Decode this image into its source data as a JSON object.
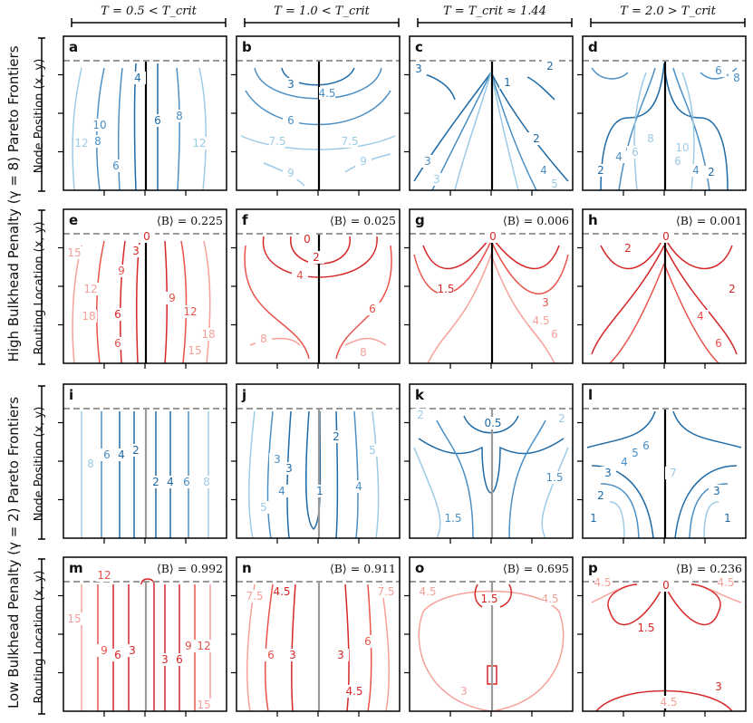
{
  "columns": [
    {
      "id": "col-1",
      "label": "T = 0.5 < T_crit"
    },
    {
      "id": "col-2",
      "label": "T = 1.0 < T_crit"
    },
    {
      "id": "col-3",
      "label": "T = T_crit ≈ 1.44"
    },
    {
      "id": "col-4",
      "label": "T = 2.0 > T_crit"
    }
  ],
  "group_labels": [
    {
      "id": "high",
      "label": "High Bulkhead Penalty (γ = 8) Pareto Frontiers"
    },
    {
      "id": "low",
      "label": "Low Bulkhead Penalty (γ = 2) Pareto Frontiers"
    }
  ],
  "row_labels": [
    {
      "label": "Node Position (x, y)"
    },
    {
      "label": "Routing Location (x, y)"
    },
    {
      "label": "Node Position (x, y)"
    },
    {
      "label": "Routing Location (x, y)"
    }
  ],
  "colors": {
    "blue_dark": "#1f6aa5",
    "blue_mid": "#4b8fc4",
    "blue_light": "#9ccbe6",
    "red_dark": "#d62728",
    "red_mid": "#e8534a",
    "red_light": "#f5a19a",
    "dashed_line": "#9a9a9a",
    "center_line_dark": "#000000",
    "center_line_gray": "#9a9a9a"
  },
  "chart_data": [
    {
      "type": "contour",
      "panel": "a",
      "row": "high-node",
      "T": 0.5,
      "gamma": 8,
      "bulkhead": "",
      "contour_levels": [
        "4",
        "6",
        "8",
        "10",
        "12",
        "6",
        "8",
        "12"
      ]
    },
    {
      "type": "contour",
      "panel": "b",
      "row": "high-node",
      "T": 1.0,
      "gamma": 8,
      "bulkhead": "",
      "contour_levels": [
        "3",
        "4.5",
        "6",
        "7.5",
        "7.5",
        "9",
        "9"
      ]
    },
    {
      "type": "contour",
      "panel": "c",
      "row": "high-node",
      "T": 1.44,
      "gamma": 8,
      "bulkhead": "",
      "contour_levels": [
        "1",
        "2",
        "3",
        "3",
        "2",
        "3",
        "4",
        "5"
      ]
    },
    {
      "type": "contour",
      "panel": "d",
      "row": "high-node",
      "T": 2.0,
      "gamma": 8,
      "bulkhead": "",
      "contour_levels": [
        "6",
        "8",
        "2",
        "4",
        "6",
        "8",
        "10",
        "2",
        "4",
        "6"
      ]
    },
    {
      "type": "contour",
      "panel": "e",
      "row": "high-routing",
      "T": 0.5,
      "gamma": 8,
      "bulkhead": "⟨B⟩ = 0.225",
      "contour_levels": [
        "0",
        "3",
        "6",
        "9",
        "12",
        "15",
        "18",
        "6",
        "9",
        "12",
        "18",
        "15"
      ]
    },
    {
      "type": "contour",
      "panel": "f",
      "row": "high-routing",
      "T": 1.0,
      "gamma": 8,
      "bulkhead": "⟨B⟩ = 0.025",
      "contour_levels": [
        "0",
        "2",
        "4",
        "6",
        "8",
        "8"
      ]
    },
    {
      "type": "contour",
      "panel": "g",
      "row": "high-routing",
      "T": 1.44,
      "gamma": 8,
      "bulkhead": "⟨B⟩ = 0.006",
      "contour_levels": [
        "0",
        "1.5",
        "3",
        "4.5",
        "6"
      ]
    },
    {
      "type": "contour",
      "panel": "h",
      "row": "high-routing",
      "T": 2.0,
      "gamma": 8,
      "bulkhead": "⟨B⟩ = 0.001",
      "contour_levels": [
        "0",
        "2",
        "2",
        "4",
        "6"
      ]
    },
    {
      "type": "contour",
      "panel": "i",
      "row": "low-node",
      "T": 0.5,
      "gamma": 2,
      "bulkhead": "",
      "contour_levels": [
        "8",
        "6",
        "4",
        "2",
        "2",
        "4",
        "6",
        "8"
      ]
    },
    {
      "type": "contour",
      "panel": "j",
      "row": "low-node",
      "T": 1.0,
      "gamma": 2,
      "bulkhead": "",
      "contour_levels": [
        "3",
        "2",
        "1",
        "3",
        "4",
        "5",
        "4",
        "5"
      ]
    },
    {
      "type": "contour",
      "panel": "k",
      "row": "low-node",
      "T": 1.44,
      "gamma": 2,
      "bulkhead": "",
      "contour_levels": [
        "0.5",
        "1",
        "1.5",
        "1.5",
        "2",
        "2"
      ]
    },
    {
      "type": "contour",
      "panel": "l",
      "row": "low-node",
      "T": 2.0,
      "gamma": 2,
      "bulkhead": "",
      "contour_levels": [
        "6",
        "5",
        "4",
        "3",
        "2",
        "1",
        "7",
        "3",
        "1"
      ]
    },
    {
      "type": "contour",
      "panel": "m",
      "row": "low-routing",
      "T": 0.5,
      "gamma": 2,
      "bulkhead": "⟨B⟩ = 0.992",
      "contour_levels": [
        "12",
        "15",
        "9",
        "6",
        "3",
        "3",
        "6",
        "9",
        "12",
        "15"
      ]
    },
    {
      "type": "contour",
      "panel": "n",
      "row": "low-routing",
      "T": 1.0,
      "gamma": 2,
      "bulkhead": "⟨B⟩ = 0.911",
      "contour_levels": [
        "7.5",
        "4.5",
        "6",
        "3",
        "3",
        "6",
        "4.5",
        "7.5"
      ]
    },
    {
      "type": "contour",
      "panel": "o",
      "row": "low-routing",
      "T": 1.44,
      "gamma": 2,
      "bulkhead": "⟨B⟩ = 0.695",
      "contour_levels": [
        "4.5",
        "1.5",
        "4.5",
        "3"
      ]
    },
    {
      "type": "contour",
      "panel": "p",
      "row": "low-routing",
      "T": 2.0,
      "gamma": 2,
      "bulkhead": "⟨B⟩ = 0.236",
      "contour_levels": [
        "4.5",
        "0",
        "1.5",
        "4.5",
        "3",
        "4.5"
      ]
    }
  ]
}
